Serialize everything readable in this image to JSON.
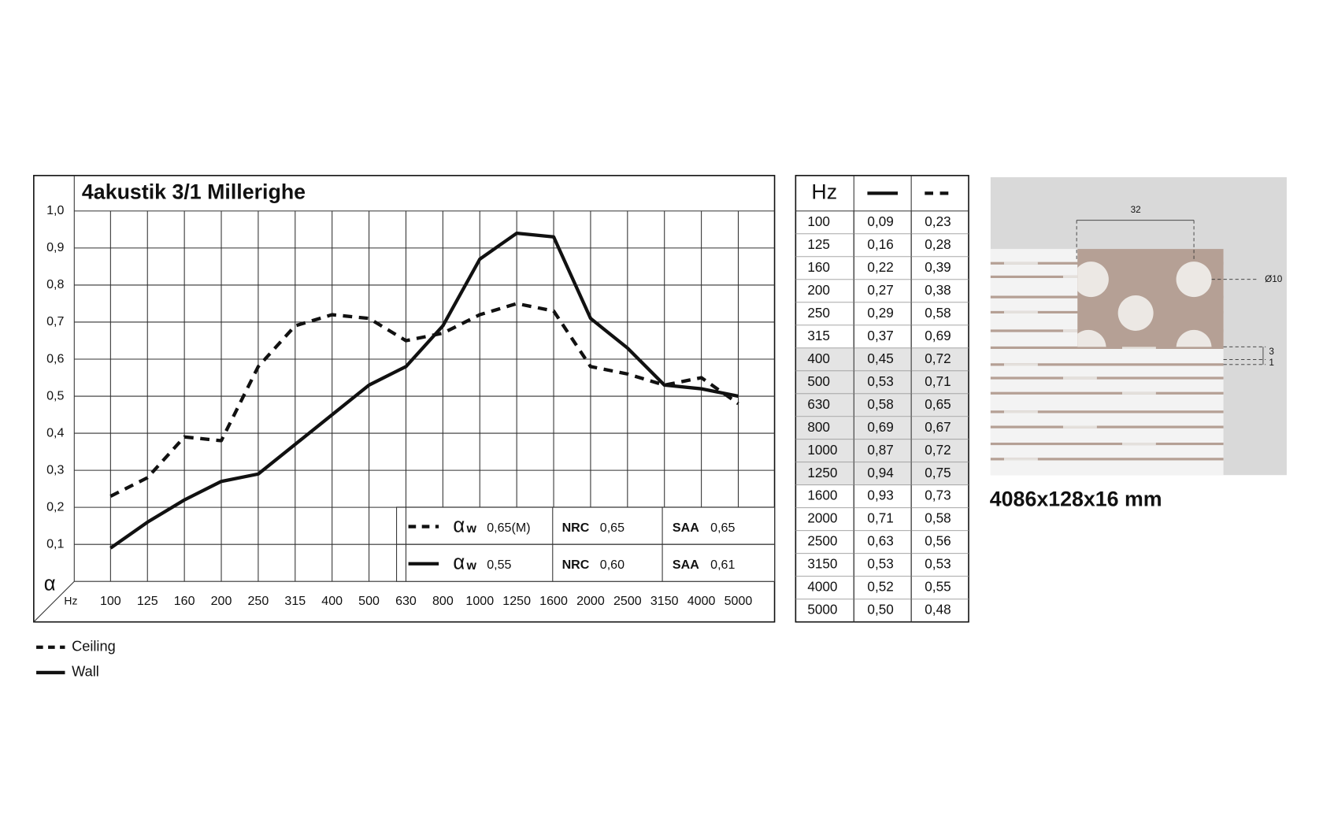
{
  "chart_data": {
    "type": "line",
    "title": "4akustik 3/1 Millerighe",
    "x_label": "Hz",
    "y_label": "α",
    "categories": [
      "100",
      "125",
      "160",
      "200",
      "250",
      "315",
      "400",
      "500",
      "630",
      "800",
      "1000",
      "1250",
      "1600",
      "2000",
      "2500",
      "3150",
      "4000",
      "5000"
    ],
    "ylim": [
      0,
      1
    ],
    "yticks": [
      {
        "value": 0.1,
        "label": "0,1"
      },
      {
        "value": 0.2,
        "label": "0,2"
      },
      {
        "value": 0.3,
        "label": "0,3"
      },
      {
        "value": 0.4,
        "label": "0,4"
      },
      {
        "value": 0.5,
        "label": "0,5"
      },
      {
        "value": 0.6,
        "label": "0,6"
      },
      {
        "value": 0.7,
        "label": "0,7"
      },
      {
        "value": 0.8,
        "label": "0,8"
      },
      {
        "value": 0.9,
        "label": "0,9"
      },
      {
        "value": 1,
        "label": "1,0"
      }
    ],
    "grid": true,
    "series": [
      {
        "name": "Ceiling",
        "color": "#111111",
        "style": "dashed",
        "values": [
          0.23,
          0.28,
          0.39,
          0.38,
          0.58,
          0.69,
          0.72,
          0.71,
          0.65,
          0.67,
          0.72,
          0.75,
          0.73,
          0.58,
          0.56,
          0.53,
          0.55,
          0.48
        ],
        "value_labels": [
          "0,23",
          "0,28",
          "0,39",
          "0,38",
          "0,58",
          "0,69",
          "0,72",
          "0,71",
          "0,65",
          "0,67",
          "0,72",
          "0,75",
          "0,73",
          "0,58",
          "0,56",
          "0,53",
          "0,55",
          "0,48"
        ]
      },
      {
        "name": "Wall",
        "color": "#111111",
        "style": "solid",
        "values": [
          0.09,
          0.16,
          0.22,
          0.27,
          0.29,
          0.37,
          0.45,
          0.53,
          0.58,
          0.69,
          0.87,
          0.94,
          0.93,
          0.71,
          0.63,
          0.53,
          0.52,
          0.5
        ],
        "value_labels": [
          "0,09",
          "0,16",
          "0,22",
          "0,27",
          "0,29",
          "0,37",
          "0,45",
          "0,53",
          "0,58",
          "0,69",
          "0,87",
          "0,94",
          "0,93",
          "0,71",
          "0,63",
          "0,53",
          "0,52",
          "0,50"
        ]
      }
    ],
    "ratings": [
      {
        "alpha": "α",
        "alpha_sub": "w",
        "alpha_value": "0,65(M)",
        "nrc": "NRC",
        "nrc_value": "0,65",
        "saa": "SAA",
        "saa_value": "0,65"
      },
      {
        "alpha": "α",
        "alpha_sub": "w",
        "alpha_value": "0,55",
        "nrc": "NRC",
        "nrc_value": "0,60",
        "saa": "SAA",
        "saa_value": "0,61"
      }
    ],
    "table_header": "Hz"
  },
  "product": {
    "dimensions": "4086x128x16 mm",
    "pitch": "32",
    "hole": "Ø10",
    "gaps": [
      "3",
      "1"
    ]
  }
}
